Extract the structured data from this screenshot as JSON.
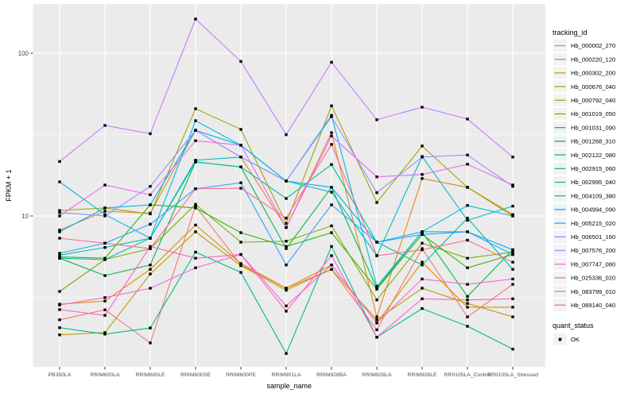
{
  "chart_data": {
    "type": "line",
    "title": "",
    "xlabel": "sample_name",
    "ylabel": "FPKM + 1",
    "y_scale": "log10",
    "y_ticks": [
      {
        "value": 100,
        "label": "100"
      },
      {
        "value": 10,
        "label": "10"
      }
    ],
    "y_minor_ticks": [
      31.62,
      3.162
    ],
    "ylim": [
      1.15,
      200
    ],
    "grid": true,
    "legend_position": "right",
    "panel_bg": "#EBEBEB",
    "grid_color": "#FFFFFF",
    "axis_text_color": "#4D4D4D",
    "title_text_color": "#000000",
    "point_color": "#000000",
    "point_shape": "square",
    "legend_key_bg": "#F2F2F2",
    "legend_title": "tracking_id",
    "quant_legend": {
      "title": "quant_status",
      "items": [
        {
          "label": "OK",
          "marker": "black-square"
        }
      ]
    },
    "categories": [
      "PB350LA",
      "RRIM600LA",
      "RRIM600LE",
      "RRIM600SE",
      "RRIM600PE",
      "RRIM901LA",
      "RRIM928BA",
      "RRIM928LA",
      "RRIM928LE",
      "RRII105LA_Control",
      "RRII105LA_Stressed"
    ],
    "series": [
      {
        "name": "Hb_000002_270",
        "color": "#F8766D",
        "values": [
          2.3,
          2.65,
          1.66,
          11.5,
          5.0,
          3.6,
          4.7,
          2.0,
          6.3,
          2.4,
          3.8
        ]
      },
      {
        "name": "Hb_000220_120",
        "color": "#E88526",
        "values": [
          8.2,
          10.7,
          10.4,
          33.6,
          23.0,
          8.5,
          32.5,
          2.4,
          17.0,
          15.0,
          10.0
        ]
      },
      {
        "name": "Hb_000302_200",
        "color": "#D89000",
        "values": [
          2.87,
          3.0,
          4.7,
          8.8,
          5.1,
          3.6,
          5.0,
          2.2,
          5.2,
          2.75,
          2.75
        ]
      },
      {
        "name": "Hb_000676_040",
        "color": "#C09B00",
        "values": [
          1.86,
          1.92,
          4.4,
          8.0,
          4.95,
          3.5,
          4.7,
          2.3,
          3.6,
          2.9,
          2.4
        ]
      },
      {
        "name": "Hb_000792_040",
        "color": "#A3A500",
        "values": [
          10.8,
          11.2,
          10.3,
          45.6,
          34.0,
          9.0,
          47.5,
          12.1,
          26.9,
          15.0,
          10.2
        ]
      },
      {
        "name": "Hb_001019_050",
        "color": "#7CAE00",
        "values": [
          3.44,
          5.4,
          6.3,
          11.8,
          6.9,
          7.0,
          8.7,
          3.05,
          6.8,
          5.5,
          6.0
        ]
      },
      {
        "name": "Hb_001031_090",
        "color": "#39B600",
        "values": [
          5.6,
          5.5,
          11.7,
          11.2,
          7.9,
          6.5,
          7.9,
          3.55,
          7.7,
          4.8,
          5.8
        ]
      },
      {
        "name": "Hb_001268_310",
        "color": "#00BB4E",
        "values": [
          5.5,
          4.3,
          5.0,
          21.5,
          20.0,
          6.3,
          15.0,
          3.6,
          8.0,
          3.2,
          6.2
        ]
      },
      {
        "name": "Hb_002122_080",
        "color": "#00BF7D",
        "values": [
          2.06,
          1.88,
          2.05,
          6.0,
          4.5,
          1.43,
          6.5,
          1.8,
          2.7,
          2.1,
          1.52
        ]
      },
      {
        "name": "Hb_002915_060",
        "color": "#00C1A3",
        "values": [
          5.75,
          6.4,
          7.3,
          21.5,
          20.0,
          12.8,
          20.7,
          6.9,
          5.0,
          9.7,
          4.7
        ]
      },
      {
        "name": "Hb_002995_040",
        "color": "#00BFC4",
        "values": [
          5.5,
          5.4,
          7.3,
          22.0,
          23.0,
          16.4,
          14.0,
          5.7,
          23.2,
          9.4,
          11.5
        ]
      },
      {
        "name": "Hb_004109_380",
        "color": "#00BAE0",
        "values": [
          16.2,
          10.2,
          7.3,
          38.5,
          27.2,
          16.4,
          41.5,
          3.7,
          8.0,
          11.6,
          10.0
        ]
      },
      {
        "name": "Hb_004994_090",
        "color": "#00B0F6",
        "values": [
          8.0,
          11.2,
          11.7,
          33.6,
          27.2,
          16.4,
          15.0,
          6.9,
          8.0,
          8.0,
          6.2
        ]
      },
      {
        "name": "Hb_005215_020",
        "color": "#35A2FF",
        "values": [
          5.9,
          6.8,
          8.9,
          14.7,
          16.0,
          5.0,
          11.7,
          6.9,
          7.7,
          8.0,
          5.8
        ]
      },
      {
        "name": "Hb_006501_160",
        "color": "#9590FF",
        "values": [
          10.5,
          10.0,
          15.2,
          33.6,
          23.0,
          16.4,
          40.7,
          13.9,
          23.0,
          23.7,
          15.2
        ]
      },
      {
        "name": "Hb_007576_200",
        "color": "#C77CFF",
        "values": [
          21.6,
          36.0,
          32.0,
          162.0,
          89.0,
          31.6,
          88.0,
          39.0,
          46.6,
          39.4,
          23.0
        ]
      },
      {
        "name": "Hb_007747_080",
        "color": "#E76BF3",
        "values": [
          10.0,
          15.5,
          13.5,
          29.0,
          27.2,
          8.5,
          31.0,
          17.4,
          18.0,
          20.8,
          15.5
        ]
      },
      {
        "name": "Hb_025336_020",
        "color": "#FA62DB",
        "values": [
          2.84,
          3.15,
          3.6,
          4.8,
          5.8,
          2.8,
          5.0,
          2.2,
          4.1,
          3.8,
          4.1
        ]
      },
      {
        "name": "Hb_083799_010",
        "color": "#FF61CC",
        "values": [
          2.66,
          2.45,
          6.5,
          5.5,
          5.8,
          2.6,
          5.7,
          1.8,
          3.1,
          3.05,
          3.1
        ]
      },
      {
        "name": "Hb_089140_040",
        "color": "#FF6A98",
        "values": [
          7.3,
          6.8,
          6.3,
          14.7,
          14.8,
          9.7,
          27.5,
          5.7,
          6.2,
          7.1,
          5.2
        ]
      }
    ]
  }
}
